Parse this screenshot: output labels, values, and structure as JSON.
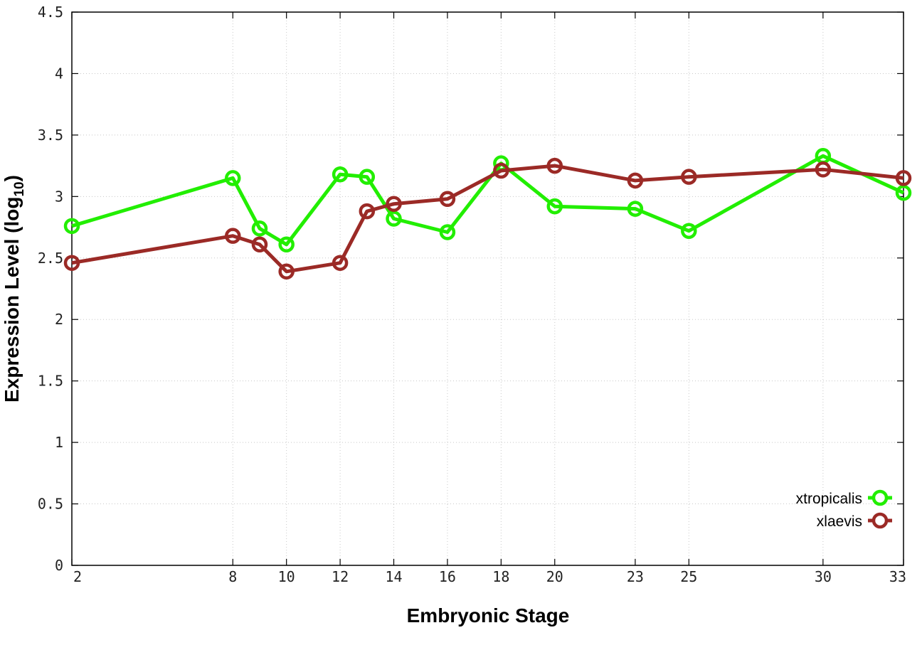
{
  "chart_data": {
    "type": "line",
    "xlabel": "Embryonic Stage",
    "ylabel": {
      "main": "Expression Level (log",
      "sub": "10",
      "close": ")"
    },
    "ylim": [
      0,
      4.5
    ],
    "xlim": [
      2,
      33
    ],
    "x_ticks": [
      2,
      8,
      10,
      12,
      14,
      16,
      18,
      20,
      23,
      25,
      30,
      33
    ],
    "y_ticks": [
      "0",
      "0.5",
      "1",
      "1.5",
      "2",
      "2.5",
      "3",
      "3.5",
      "4",
      "4.5"
    ],
    "grid": true,
    "legend_position": "bottom-right",
    "x": [
      2,
      8,
      9,
      10,
      12,
      13,
      14,
      16,
      18,
      20,
      23,
      25,
      30,
      33
    ],
    "series": [
      {
        "name": "xtropicalis",
        "color": "#22ee00",
        "values": [
          2.76,
          3.15,
          2.74,
          2.61,
          3.18,
          3.16,
          2.82,
          2.71,
          3.27,
          2.92,
          2.9,
          2.72,
          3.33,
          3.03
        ]
      },
      {
        "name": "xlaevis",
        "color": "#9b2a26",
        "values": [
          2.46,
          2.68,
          2.61,
          2.39,
          2.46,
          2.88,
          2.94,
          2.98,
          3.21,
          3.25,
          3.13,
          3.16,
          3.22,
          3.15
        ]
      }
    ]
  }
}
